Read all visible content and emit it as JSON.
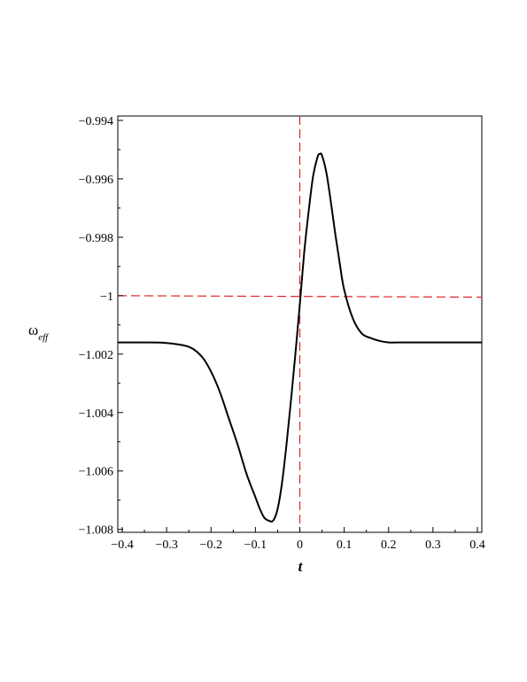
{
  "chart_data": {
    "type": "line",
    "xlabel": "t",
    "ylabel": {
      "main": "ω",
      "sub": "eff"
    },
    "xlim": [
      -0.41,
      0.41
    ],
    "ylim": [
      -1.0081,
      -0.99385
    ],
    "x_ticks": [
      -0.4,
      -0.3,
      -0.2,
      -0.1,
      0,
      0.1,
      0.2,
      0.3,
      0.4
    ],
    "x_tick_labels": [
      "−0.4",
      "−0.3",
      "−0.2",
      "−0.1",
      "0",
      "0.1",
      "0.2",
      "0.3",
      "0.4"
    ],
    "y_ticks": [
      -0.994,
      -0.996,
      -0.998,
      -1,
      -1.002,
      -1.004,
      -1.006,
      -1.008
    ],
    "y_tick_labels": [
      "−0.994",
      "−0.996",
      "−0.998",
      "−1",
      "−1.002",
      "−1.004",
      "−1.006",
      "−1.008"
    ],
    "grid": false,
    "series": [
      {
        "style": "solid",
        "color": "#000000",
        "x": [
          -0.41,
          -0.35,
          -0.3,
          -0.25,
          -0.22,
          -0.2,
          -0.18,
          -0.16,
          -0.14,
          -0.12,
          -0.1,
          -0.09,
          -0.08,
          -0.07,
          -0.06,
          -0.05,
          -0.04,
          -0.03,
          -0.02,
          -0.01,
          0,
          0.01,
          0.02,
          0.03,
          0.04,
          0.045,
          0.05,
          0.06,
          0.07,
          0.08,
          0.09,
          0.1,
          0.12,
          0.14,
          0.16,
          0.18,
          0.2,
          0.23,
          0.27,
          0.3,
          0.35,
          0.41
        ],
        "y": [
          -1.0016,
          -1.0016,
          -1.00162,
          -1.00175,
          -1.0021,
          -1.0026,
          -1.0033,
          -1.0042,
          -1.0051,
          -1.0061,
          -1.0069,
          -1.0073,
          -1.0076,
          -1.0077,
          -1.0077,
          -1.0073,
          -1.0064,
          -1.0051,
          -1.0036,
          -1.002,
          -1.0003,
          -0.9985,
          -0.9971,
          -0.9959,
          -0.99525,
          -0.99515,
          -0.9952,
          -0.9958,
          -0.9968,
          -0.9979,
          -0.9989,
          -0.9998,
          -1.0008,
          -1.0013,
          -1.00145,
          -1.00155,
          -1.0016,
          -1.0016,
          -1.0016,
          -1.0016,
          -1.0016,
          -1.0016
        ]
      }
    ],
    "reference_lines": [
      {
        "orientation": "vertical",
        "x": 0,
        "style": "dashed",
        "color": "#e02424"
      },
      {
        "orientation": "horizontal",
        "y": -1,
        "x_range": [
          -0.41,
          0.41
        ],
        "y_end": -1.00005,
        "style": "dashed",
        "color": "#e02424"
      }
    ]
  }
}
